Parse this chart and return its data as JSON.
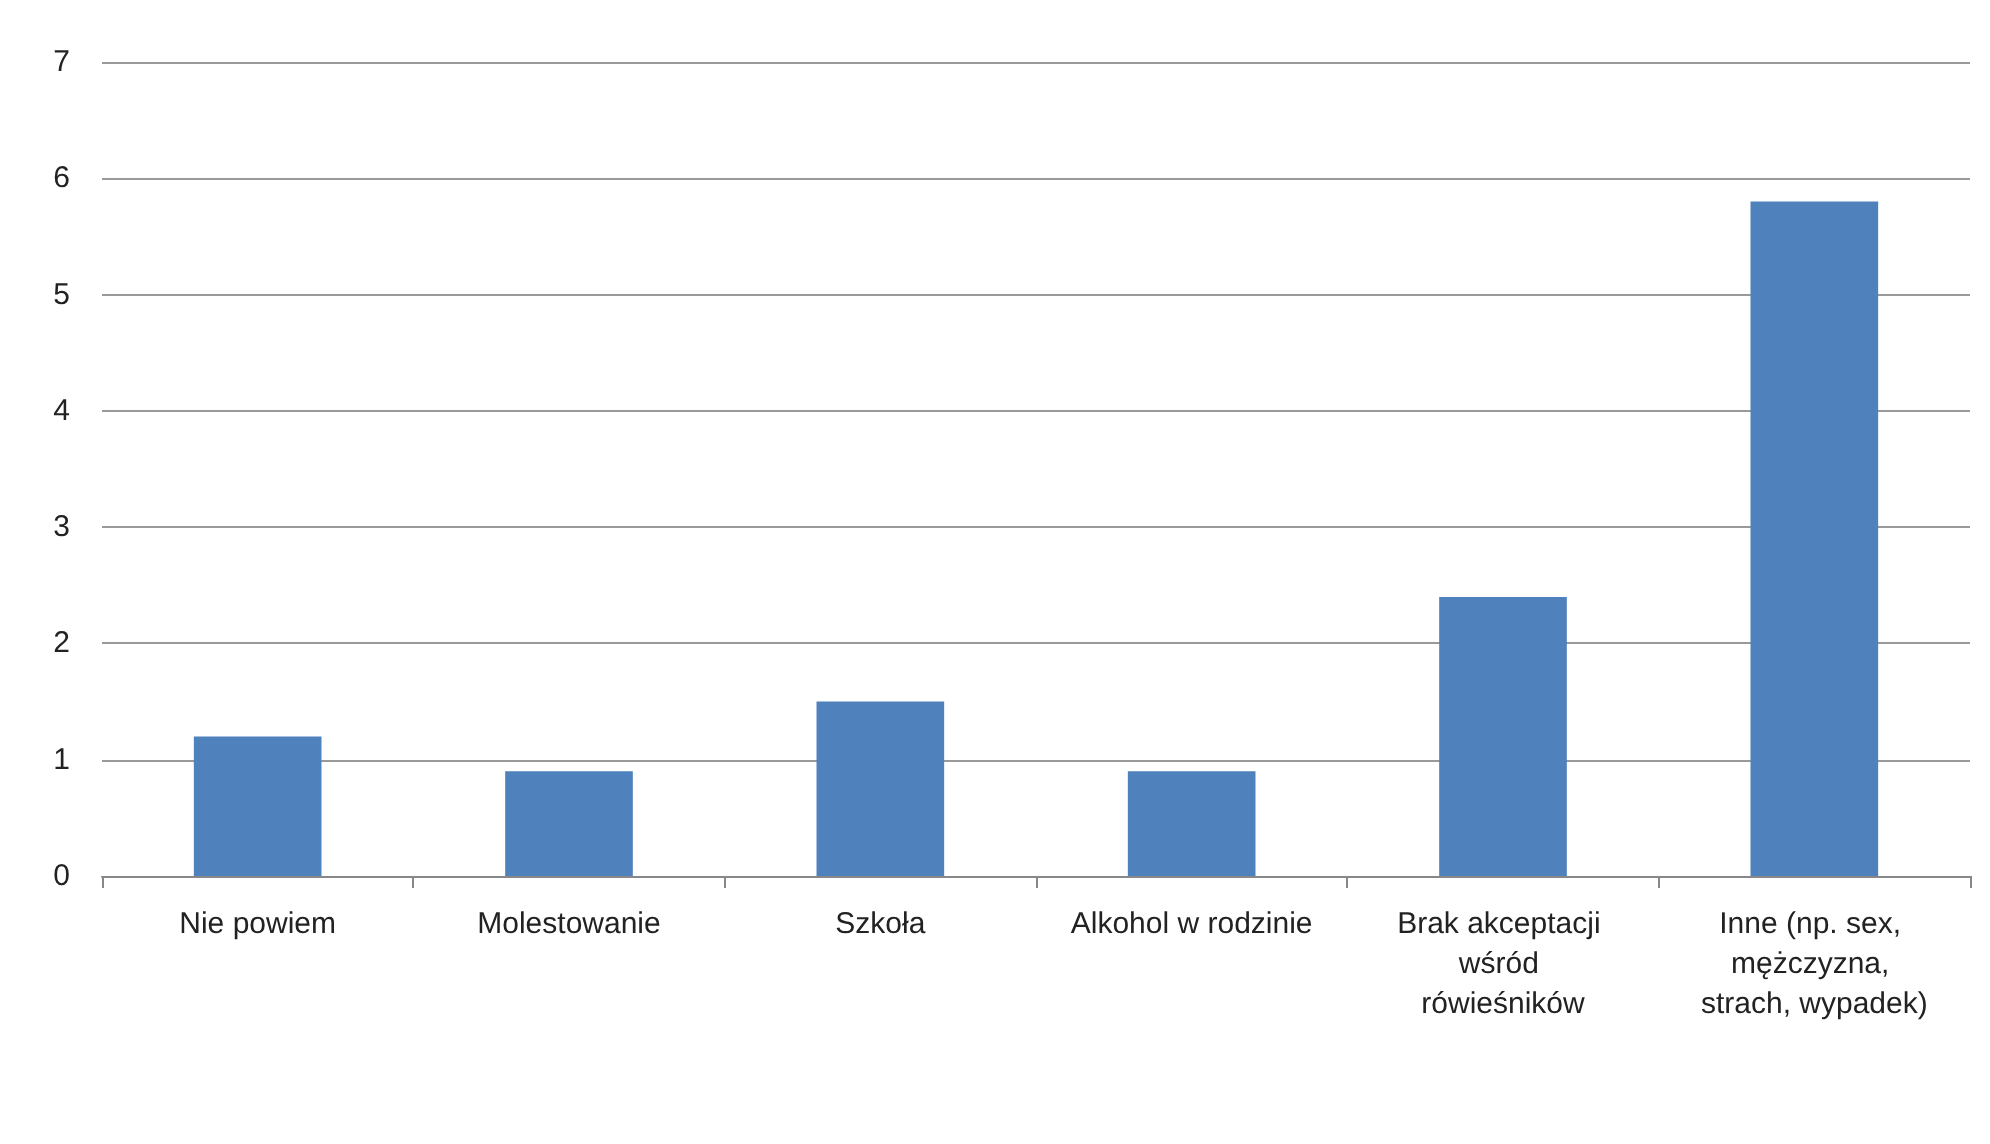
{
  "chart_data": {
    "type": "bar",
    "categories": [
      "Nie powiem",
      "Molestowanie",
      "Szkoła",
      "Alkohol w rodzinie",
      "Brak akceptacji wśród rówieśników",
      "Inne (np. sex, mężczyzna, strach, wypadek)"
    ],
    "values": [
      1.2,
      0.9,
      1.5,
      0.9,
      2.4,
      5.8
    ],
    "color": "#4f81bd",
    "ylim": [
      0,
      7
    ],
    "yticks": [
      0,
      1,
      2,
      3,
      4,
      5,
      6,
      7
    ],
    "grid": "y"
  }
}
